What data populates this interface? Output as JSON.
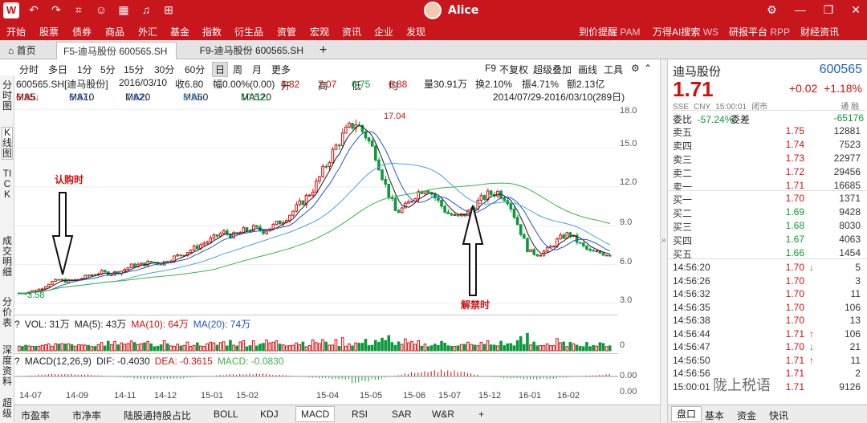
{
  "titlebar": {
    "logo": "W",
    "username": "Alice",
    "icons": [
      "back-icon",
      "forward-icon",
      "crop-icon",
      "chat-icon",
      "grid-icon",
      "bell-icon",
      "grid-app-icon"
    ],
    "window_controls": [
      "settings-icon",
      "minimize-icon",
      "restore-icon",
      "close-icon"
    ]
  },
  "menu": {
    "items": [
      "开始",
      "股票",
      "债券",
      "商品",
      "外汇",
      "基金",
      "指数",
      "衍生品",
      "资管",
      "宏观",
      "资讯",
      "企业",
      "发现"
    ],
    "right": [
      {
        "label": "到价提醒",
        "code": "PAM"
      },
      {
        "label": "万得AI搜索",
        "code": "WS"
      },
      {
        "label": "研报平台",
        "code": "RPP"
      },
      {
        "label": "财经资讯",
        "code": ""
      }
    ]
  },
  "tabs": {
    "home": "首页",
    "tab1": "F5-迪马股份 600565.SH",
    "tab2": "F9-迪马股份 600565.SH",
    "add": "+"
  },
  "period": {
    "items": [
      "分时",
      "多日",
      "1分",
      "5分",
      "15分",
      "30分",
      "60分",
      "日",
      "周",
      "月",
      "更多"
    ],
    "selected": "日",
    "right": [
      "F9",
      "不复权",
      "超级叠加",
      "画线",
      "工具"
    ]
  },
  "leftnav": [
    "分时图",
    "K线图",
    "TICK",
    "成交明细",
    "分价表",
    "深度资料",
    "超级"
  ],
  "info": {
    "security": "600565.SH[迪马股份]",
    "date": "2016/03/10",
    "close": "收6.80",
    "amp_label": "幅0.00%(0.00)",
    "open_label": "开",
    "open": "6.82",
    "high_label": "高",
    "high": "7.07",
    "low_label": "低",
    "low": "6.75",
    "avg_label": "均",
    "avg": "6.88",
    "vol": "量30.91万",
    "turnover": "换2.10%",
    "swing": "振4.71%",
    "amount": "额2.13亿"
  },
  "ma": {
    "ma5_label": "MA5",
    "ma5": "6.85↓",
    "ma10_label": "MA10",
    "ma10": "6.87↓",
    "ma20_label": "MA20",
    "ma20": "7.62↓",
    "ma60_label": "MA60",
    "ma60": "8.55↓",
    "ma120_label": "MA120",
    "ma120": "10.52↓",
    "range": "2014/07/29-2016/03/10(289日)"
  },
  "annotations": {
    "subscribe": "认购时",
    "unlock": "解禁时",
    "high_label": "17.04",
    "low_label": "3.58"
  },
  "vol": {
    "q": "?",
    "vol": "VOL: 31万",
    "ma5": "MA(5): 43万",
    "ma10": "MA(10): 64万",
    "ma20": "MA(20): 74万"
  },
  "macd": {
    "q": "?",
    "name": "MACD(12,26,9)",
    "dif": "DIF: -0.4030",
    "dea": "DEA: -0.3615",
    "macd": "MACD: -0.0830"
  },
  "xaxis": [
    "14-07",
    "14-09",
    "14-11",
    "14-12",
    "15-01",
    "15-02",
    "15-04",
    "15-05",
    "15-06",
    "15-07",
    "15-12",
    "16-01",
    "16-02"
  ],
  "bottom_tabs": [
    "市盈率",
    "市净率",
    "陆股通持股占比",
    "BOLL",
    "KDJ",
    "MACD",
    "RSI",
    "SAR",
    "W&R",
    "+"
  ],
  "bottom_selected": "MACD",
  "quote": {
    "name": "迪马股份",
    "code": "600565",
    "price": "1.71",
    "change": "+0.02",
    "pct": "+1.18%",
    "sub": [
      "SSE",
      "CNY",
      "15:00:01",
      "闭市"
    ],
    "sub_right": "通 融",
    "wb_label": "委比",
    "wb": "-57.24%",
    "wc_label": "委差",
    "wc": "-65176"
  },
  "asks": [
    {
      "label": "卖五",
      "price": "1.75",
      "vol": "12881"
    },
    {
      "label": "卖四",
      "price": "1.74",
      "vol": "7523"
    },
    {
      "label": "卖三",
      "price": "1.73",
      "vol": "22977"
    },
    {
      "label": "卖二",
      "price": "1.72",
      "vol": "29456"
    },
    {
      "label": "卖一",
      "price": "1.71",
      "vol": "16685"
    }
  ],
  "bids": [
    {
      "label": "买一",
      "price": "1.70",
      "vol": "1371"
    },
    {
      "label": "买二",
      "price": "1.69",
      "vol": "9428"
    },
    {
      "label": "买三",
      "price": "1.68",
      "vol": "8030"
    },
    {
      "label": "买四",
      "price": "1.67",
      "vol": "4063"
    },
    {
      "label": "买五",
      "price": "1.66",
      "vol": "1454"
    }
  ],
  "ticks": [
    {
      "time": "14:56:20",
      "price": "1.70",
      "dir": "down",
      "vol": "5"
    },
    {
      "time": "14:56:26",
      "price": "1.70",
      "dir": "",
      "vol": "3"
    },
    {
      "time": "14:56:32",
      "price": "1.70",
      "dir": "",
      "vol": "11"
    },
    {
      "time": "14:56:35",
      "price": "1.70",
      "dir": "",
      "vol": "106"
    },
    {
      "time": "14:56:38",
      "price": "1.70",
      "dir": "",
      "vol": "13"
    },
    {
      "time": "14:56:44",
      "price": "1.71",
      "dir": "up",
      "vol": "106"
    },
    {
      "time": "14:56:47",
      "price": "1.70",
      "dir": "down",
      "vol": "21"
    },
    {
      "time": "14:56:50",
      "price": "1.71",
      "dir": "up",
      "vol": "11"
    },
    {
      "time": "14:56:56",
      "price": "1.71",
      "dir": "",
      "vol": "2"
    },
    {
      "time": "15:00:01",
      "price": "1.71",
      "dir": "",
      "vol": "9126"
    }
  ],
  "right_tabs": [
    "盘口",
    "基本",
    "资金",
    "快讯"
  ],
  "watermark": "陇上税语",
  "yaxis": {
    "price": [
      "18.0",
      "15.0",
      "12.0",
      "9.0",
      "6.0",
      "3.0"
    ],
    "vol": "0",
    "macd": [
      "0.00",
      "0.00"
    ]
  },
  "chart_data": {
    "type": "candlestick",
    "ylim": [
      3.0,
      18.0
    ],
    "high": 17.04,
    "low": 3.58,
    "close_path": [
      3.8,
      3.9,
      4.1,
      4.6,
      4.8,
      4.7,
      4.9,
      5.2,
      5.4,
      5.3,
      5.5,
      5.9,
      6.0,
      6.2,
      6.1,
      6.5,
      6.8,
      7.2,
      7.6,
      8.0,
      8.5,
      8.2,
      8.6,
      8.8,
      8.6,
      9.0,
      9.5,
      10.2,
      11.0,
      12.0,
      13.5,
      15.0,
      16.2,
      17.0,
      16.0,
      14.5,
      12.0,
      10.0,
      10.5,
      11.5,
      12.0,
      11.0,
      10.0,
      9.6,
      10.0,
      10.8,
      11.4,
      11.6,
      11.0,
      9.0,
      7.0,
      6.8,
      7.2,
      8.0,
      8.4,
      7.6,
      7.0,
      6.9,
      6.8
    ]
  },
  "colors": {
    "up": "#d01010",
    "down": "#0a9a3a",
    "ma5": "#1a1a1a",
    "ma10": "#2255cc",
    "ma20": "#4aa3df",
    "ma60": "#3bb34a",
    "ma120": "#9c27b0",
    "accent": "#c8161d"
  }
}
